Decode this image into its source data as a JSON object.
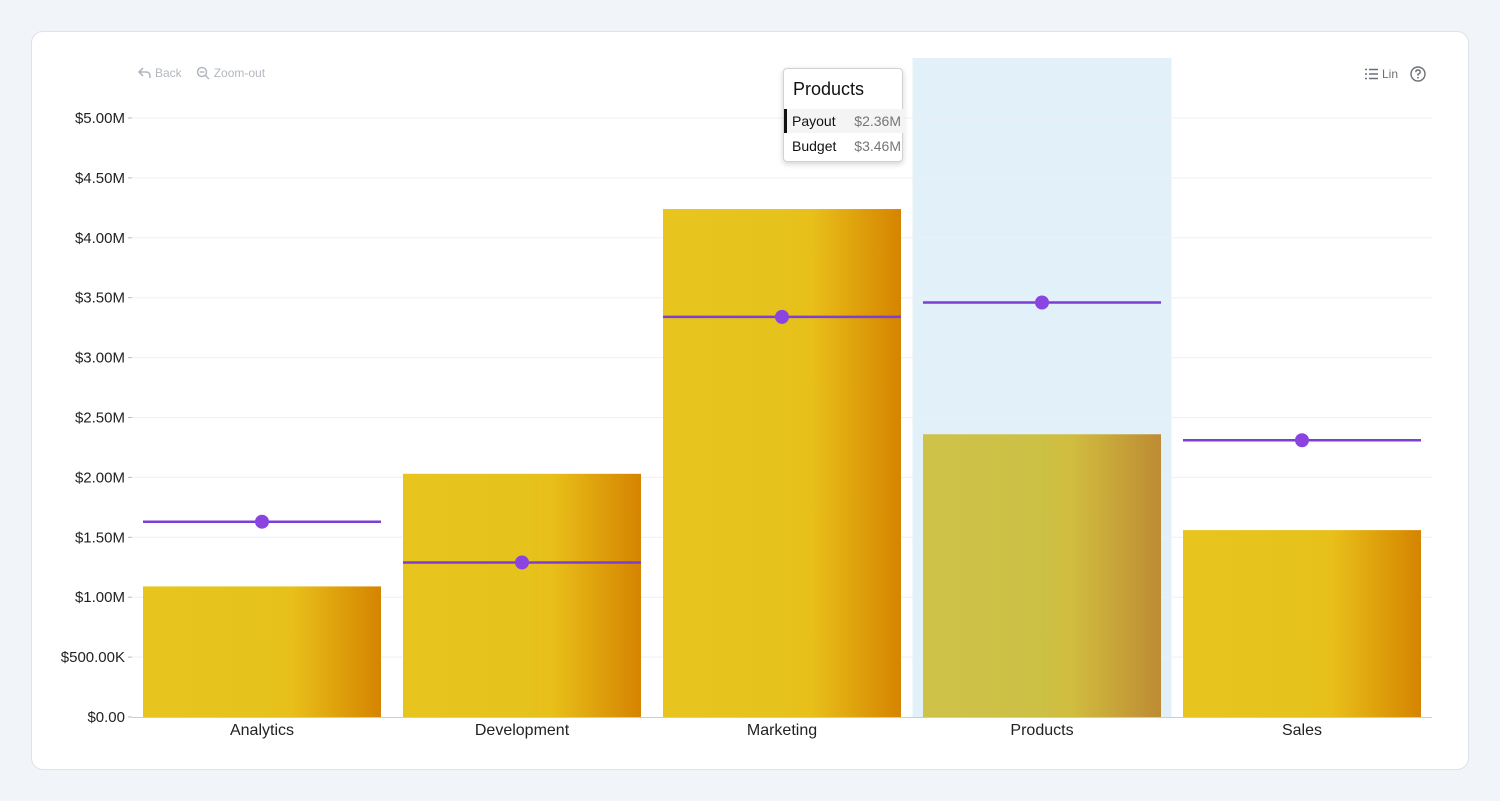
{
  "toolbar": {
    "back_label": "Back",
    "zoom_out_label": "Zoom-out",
    "scale_label": "Lin"
  },
  "tooltip": {
    "title": "Products",
    "rows": [
      {
        "name": "Payout",
        "value": "$2.36M"
      },
      {
        "name": "Budget",
        "value": "$3.46M"
      }
    ]
  },
  "colors": {
    "bar_light": "#e8c51e",
    "bar_dark": "#d88900",
    "line": "#7b3fd6",
    "highlight": "#e2f0fa"
  },
  "chart_data": {
    "type": "bar",
    "categories": [
      "Analytics",
      "Development",
      "Marketing",
      "Products",
      "Sales"
    ],
    "series": [
      {
        "name": "Payout",
        "type": "bar",
        "values": [
          1.09,
          2.03,
          4.24,
          2.36,
          1.56
        ]
      },
      {
        "name": "Budget",
        "type": "marker",
        "values": [
          1.63,
          1.29,
          3.34,
          3.46,
          2.31
        ]
      }
    ],
    "ylim": [
      0,
      5
    ],
    "yticks": [
      0,
      0.5,
      1,
      1.5,
      2,
      2.5,
      3,
      3.5,
      4,
      4.5,
      5
    ],
    "ytick_labels": [
      "$0.00",
      "$500.00K",
      "$1.00M",
      "$1.50M",
      "$2.00M",
      "$2.50M",
      "$3.00M",
      "$3.50M",
      "$4.00M",
      "$4.50M",
      "$5.00M"
    ],
    "highlighted_category": "Products",
    "grid": true
  }
}
